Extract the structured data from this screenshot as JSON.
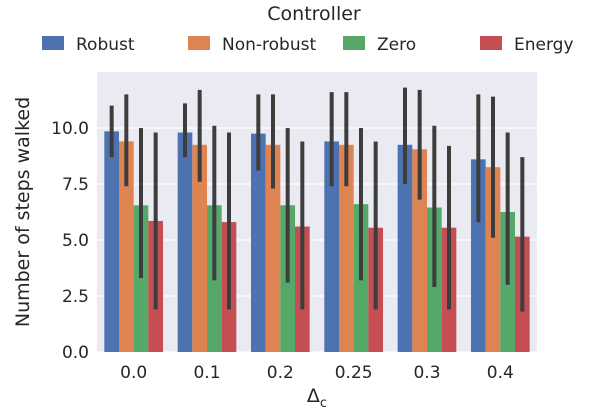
{
  "chart_data": {
    "type": "bar",
    "xlabel": "Δc",
    "xlabel_main": "Δ",
    "xlabel_sub": "c",
    "ylabel": "Number of steps walked",
    "categories": [
      "0.0",
      "0.1",
      "0.2",
      "0.25",
      "0.3",
      "0.4"
    ],
    "ylim": [
      0,
      12.5
    ],
    "yticks": [
      "0.0",
      "2.5",
      "5.0",
      "7.5",
      "10.0"
    ],
    "ytick_values": [
      0,
      2.5,
      5.0,
      7.5,
      10.0
    ],
    "grid": true,
    "legend": {
      "title": "Controller",
      "placement": "top"
    },
    "series": [
      {
        "name": "Robust",
        "color": "#4c72b0",
        "values": [
          9.85,
          9.8,
          9.75,
          9.4,
          9.25,
          8.6
        ],
        "err_low": [
          8.7,
          8.7,
          8.1,
          7.4,
          7.5,
          5.8
        ],
        "err_high": [
          11.0,
          11.1,
          11.5,
          11.6,
          11.8,
          11.5
        ]
      },
      {
        "name": "Non-robust",
        "color": "#dd8452",
        "values": [
          9.4,
          9.25,
          9.25,
          9.25,
          9.05,
          8.25
        ],
        "err_low": [
          7.4,
          7.6,
          7.3,
          7.4,
          6.8,
          5.1
        ],
        "err_high": [
          11.5,
          11.7,
          11.5,
          11.6,
          11.7,
          11.4
        ]
      },
      {
        "name": "Zero",
        "color": "#55a868",
        "values": [
          6.55,
          6.55,
          6.55,
          6.6,
          6.45,
          6.25
        ],
        "err_low": [
          3.3,
          3.2,
          3.1,
          3.2,
          2.9,
          3.0
        ],
        "err_high": [
          10.0,
          10.1,
          10.0,
          10.0,
          10.1,
          9.8
        ]
      },
      {
        "name": "Energy",
        "color": "#c44e52",
        "values": [
          5.85,
          5.8,
          5.6,
          5.55,
          5.55,
          5.15
        ],
        "err_low": [
          1.9,
          1.9,
          1.9,
          1.9,
          1.9,
          1.8
        ],
        "err_high": [
          9.8,
          9.8,
          9.4,
          9.4,
          9.2,
          8.7
        ]
      }
    ]
  }
}
